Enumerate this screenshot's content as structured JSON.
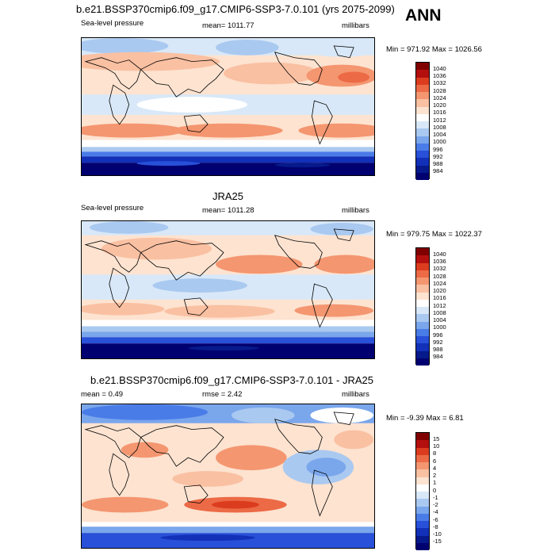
{
  "header": {
    "season": "ANN"
  },
  "panels": [
    {
      "title": "b.e21.BSSP370cmip6.f09_g17.CMIP6-SSP3-7.0.101 (yrs 2075-2099)",
      "variable": "Sea-level pressure",
      "stat_left": "",
      "stat_mid": "mean= 1011.77",
      "units": "millibars",
      "minmax": "Min = 971.92 Max = 1026.56",
      "levels": [
        "1040",
        "1036",
        "1032",
        "1028",
        "1024",
        "1020",
        "1016",
        "1012",
        "1008",
        "1004",
        "1000",
        "996",
        "992",
        "988",
        "984"
      ],
      "colors": [
        "#800000",
        "#b40f0f",
        "#dc3c1e",
        "#ec6a46",
        "#f49670",
        "#fac0a2",
        "#fde3d0",
        "#ffffff",
        "#d8e8f8",
        "#aac9f0",
        "#7aa6ec",
        "#4a7ce8",
        "#2850d8",
        "#1230b8",
        "#061a8c",
        "#000070"
      ]
    },
    {
      "title": "JRA25",
      "variable": "Sea-level pressure",
      "stat_left": "",
      "stat_mid": "mean= 1011.28",
      "units": "millibars",
      "minmax": "Min = 979.75 Max = 1022.37",
      "levels": [
        "1040",
        "1036",
        "1032",
        "1028",
        "1024",
        "1020",
        "1016",
        "1012",
        "1008",
        "1004",
        "1000",
        "996",
        "992",
        "988",
        "984"
      ],
      "colors": [
        "#800000",
        "#b40f0f",
        "#dc3c1e",
        "#ec6a46",
        "#f49670",
        "#fac0a2",
        "#fde3d0",
        "#ffffff",
        "#d8e8f8",
        "#aac9f0",
        "#7aa6ec",
        "#4a7ce8",
        "#2850d8",
        "#1230b8",
        "#061a8c",
        "#000070"
      ]
    },
    {
      "title": "b.e21.BSSP370cmip6.f09_g17.CMIP6-SSP3-7.0.101 - JRA25",
      "variable": "",
      "stat_left": "mean =   0.49",
      "stat_mid": "rmse =   2.42",
      "units": "millibars",
      "minmax": "Min =  -9.39 Max =   6.81",
      "levels": [
        "15",
        "10",
        "8",
        "6",
        "4",
        "2",
        "1",
        "0",
        "-1",
        "-2",
        "-4",
        "-6",
        "-8",
        "-10",
        "-15"
      ],
      "colors": [
        "#800000",
        "#b40f0f",
        "#dc3c1e",
        "#ec6a46",
        "#f49670",
        "#fac0a2",
        "#fde3d0",
        "#ffffff",
        "#d8e8f8",
        "#aac9f0",
        "#7aa6ec",
        "#4a7ce8",
        "#2850d8",
        "#1230b8",
        "#061a8c",
        "#000070"
      ]
    }
  ]
}
